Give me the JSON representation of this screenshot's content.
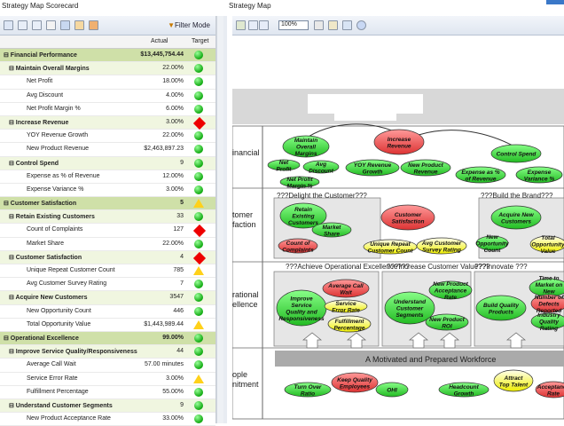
{
  "titles": {
    "left": "Strategy Map Scorecard",
    "right": "Strategy Map"
  },
  "filter_label": "Filter Mode",
  "columns": {
    "actual": "Actual",
    "target": "Target"
  },
  "rows": [
    {
      "name": "Financial Performance",
      "value": "$13,445,754.44",
      "status": "green",
      "level": 0
    },
    {
      "name": "Maintain Overall Margins",
      "value": "22.00%",
      "status": "green",
      "level": 1
    },
    {
      "name": "Net Profit",
      "value": "18.00%",
      "status": "green",
      "level": 2
    },
    {
      "name": "Avg Discount",
      "value": "4.00%",
      "status": "green",
      "level": 2
    },
    {
      "name": "Net Profit Margin %",
      "value": "6.00%",
      "status": "green",
      "level": 2
    },
    {
      "name": "Increase Revenue",
      "value": "3.00%",
      "status": "red",
      "level": 1
    },
    {
      "name": "YOY Revenue Growth",
      "value": "22.00%",
      "status": "green",
      "level": 2
    },
    {
      "name": "New Product Revenue",
      "value": "$2,463,897.23",
      "status": "green",
      "level": 2
    },
    {
      "name": "Control Spend",
      "value": "9",
      "status": "green",
      "level": 1
    },
    {
      "name": "Expense as % of Revenue",
      "value": "12.00%",
      "status": "green",
      "level": 2
    },
    {
      "name": "Expense Variance %",
      "value": "3.00%",
      "status": "green",
      "level": 2
    },
    {
      "name": "Customer Satisfaction",
      "value": "5",
      "status": "yellow",
      "level": 0
    },
    {
      "name": "Retain Existing Customers",
      "value": "33",
      "status": "green",
      "level": 1
    },
    {
      "name": "Count of Complaints",
      "value": "127",
      "status": "red",
      "level": 2
    },
    {
      "name": "Market Share",
      "value": "22.00%",
      "status": "green",
      "level": 2
    },
    {
      "name": "Customer Satisfaction",
      "value": "4",
      "status": "red",
      "level": 1
    },
    {
      "name": "Unique Repeat Customer Count",
      "value": "785",
      "status": "yellow",
      "level": 2
    },
    {
      "name": "Avg Customer Survey Rating",
      "value": "7",
      "status": "green",
      "level": 2
    },
    {
      "name": "Acquire New Customers",
      "value": "3547",
      "status": "green",
      "level": 1
    },
    {
      "name": "New Opportunity Count",
      "value": "446",
      "status": "green",
      "level": 2
    },
    {
      "name": "Total Opportunity Value",
      "value": "$1,443,989.44",
      "status": "yellow",
      "level": 2
    },
    {
      "name": "Operational Excellence",
      "value": "99.00%",
      "status": "green",
      "level": 0
    },
    {
      "name": "Improve Service Quality/Responsiveness",
      "value": "44",
      "status": "green",
      "level": 1
    },
    {
      "name": "Average Call Wait",
      "value": "57.00 minutes",
      "status": "green",
      "level": 2
    },
    {
      "name": "Service Error Rate",
      "value": "3.00%",
      "status": "yellow",
      "level": 2
    },
    {
      "name": "Fulfillment Percentage",
      "value": "55.00%",
      "status": "green",
      "level": 2
    },
    {
      "name": "Understand Customer Segments",
      "value": "9",
      "status": "green",
      "level": 1
    },
    {
      "name": "New Product Acceptance Rate",
      "value": "33.00%",
      "status": "green",
      "level": 2
    }
  ],
  "map": {
    "zoom": "100%",
    "lanes": [
      "inancial",
      "tomer\nfaction",
      "rational\nellence",
      "ople\nnitment"
    ],
    "groups": [
      "???Delight the Customer???",
      "???Build the Brand???",
      "???Achieve Operational Excellence???",
      "???Increase Customer Value???",
      "???Innovate ???"
    ],
    "workforce": "A Motivated and Prepared Workforce",
    "nodes": [
      "Maintain Overall Margins",
      "Increase Revenue",
      "Control Spend",
      "Net Profit",
      "Avg Discount",
      "Net Profit Margin %",
      "YOY Revenue Growth",
      "New Product Revenue",
      "Expense as % of Revenue",
      "Expense Variance %",
      "Retain Existing Customers",
      "Market Share",
      "Count of Complaints",
      "Customer Satisfaction",
      "Unique Repeat Customer Count",
      "Avg Customer Survey Rating",
      "Acquire New Customers",
      "New Opportunity Count",
      "Total Opportunity Value",
      "Improve Service Quality and Responsiveness",
      "Average Call Wait",
      "Service Error Rate",
      "Fulfillment Percentage",
      "Understand Customer Segments",
      "New Product Acceptance Rate",
      "New Product ROI",
      "Build Quality Products",
      "Time to Market on New Products",
      "Number of Defects Reported",
      "Industry Quality Rating",
      "Turn Over Ratio",
      "Keep Quality Employees",
      "OHI",
      "Headcount Growth",
      "Attract Top Talent",
      "Acceptance Rate"
    ]
  },
  "colors": {
    "green": "#22bb22",
    "red": "#ee2222",
    "yellow": "#ffd11a",
    "header_bg": "#cfe0a8"
  }
}
